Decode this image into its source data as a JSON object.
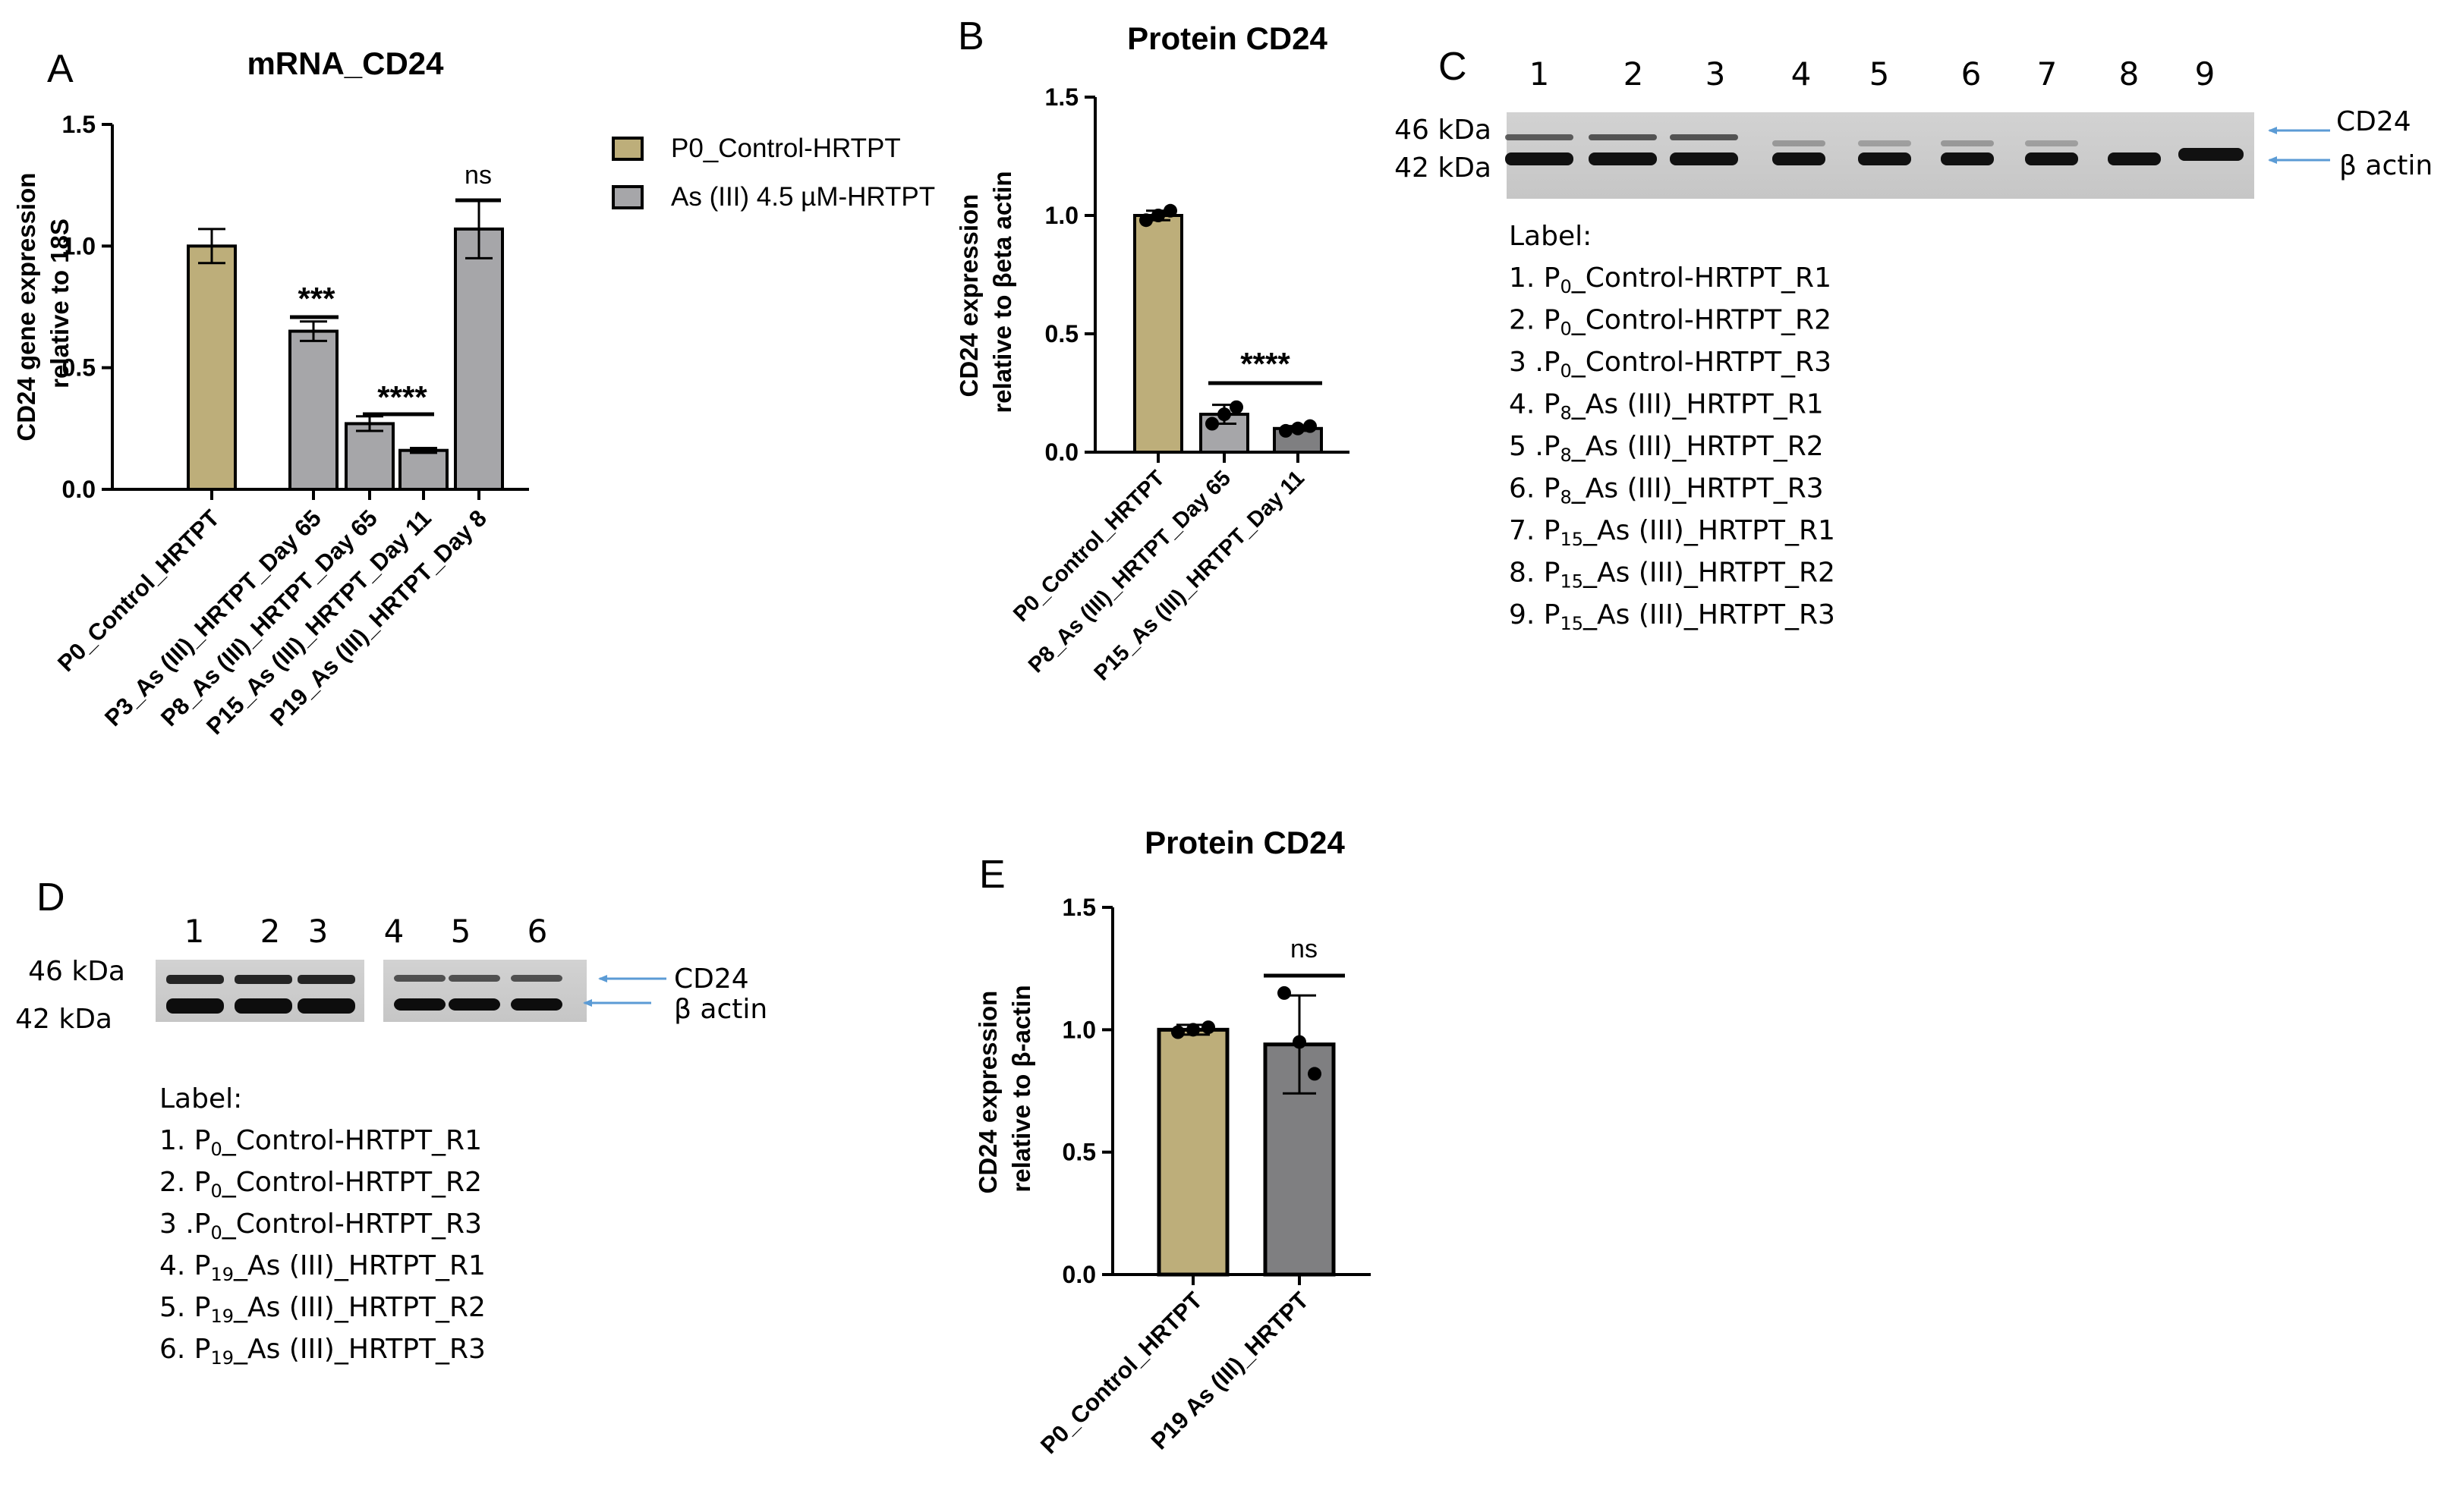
{
  "colors": {
    "control": "#bdae7a",
    "treated": "#a6a6a9",
    "treated_dark": "#7f7f81",
    "arrow": "#5b9bd5",
    "ink": "#000000"
  },
  "legend": {
    "items": [
      "P0_Control-HRTPT",
      "As (III) 4.5 µM-HRTPT"
    ]
  },
  "chart_data": [
    {
      "panel": "A",
      "type": "bar",
      "title": "mRNA_CD24",
      "ylabel": "CD24 gene expression relative to 18S",
      "ylim": [
        0,
        1.5
      ],
      "yticks": [
        "0.0",
        "0.5",
        "1.0",
        "1.5"
      ],
      "categories": [
        "P0_Control_HRTPT",
        "P3_As (III)_HRTPT_Day 65",
        "P8_As (III)_HRTPT_Day 65",
        "P15_As (III)_HRTPT_Day 11",
        "P19_As (III)_HRTPT_Day 8"
      ],
      "values": [
        1.0,
        0.65,
        0.27,
        0.16,
        1.07
      ],
      "errors": [
        0.07,
        0.04,
        0.03,
        0.01,
        0.12
      ],
      "annotations": [
        "***",
        "****",
        "ns"
      ]
    },
    {
      "panel": "B",
      "type": "bar",
      "title": "Protein CD24",
      "ylabel": "CD24 expression relative to βeta actin",
      "ylim": [
        0,
        1.5
      ],
      "yticks": [
        "0.0",
        "0.5",
        "1.0",
        "1.5"
      ],
      "categories": [
        "P0_Control_HRTPT",
        "P8_As (III)_HRTPT_Day 65",
        "P15_As (III)_HRTPT_Day 11"
      ],
      "values": [
        1.0,
        0.16,
        0.1
      ],
      "errors": [
        0.02,
        0.04,
        0.01
      ],
      "points": [
        [
          0.98,
          1.0,
          1.02
        ],
        [
          0.12,
          0.16,
          0.19
        ],
        [
          0.09,
          0.1,
          0.11
        ]
      ],
      "annotations": [
        "****"
      ]
    },
    {
      "panel": "E",
      "type": "bar",
      "title": "Protein CD24",
      "ylabel": "CD24 expression relative to β-actin",
      "ylim": [
        0,
        1.5
      ],
      "yticks": [
        "0.0",
        "0.5",
        "1.0",
        "1.5"
      ],
      "categories": [
        "P0_Control_HRTPT",
        "P19 As (III)_HRTPT"
      ],
      "values": [
        1.0,
        0.94
      ],
      "errors": [
        0.02,
        0.2
      ],
      "points": [
        [
          0.99,
          1.0,
          1.01
        ],
        [
          1.15,
          0.95,
          0.82
        ]
      ],
      "annotations": [
        "ns"
      ]
    }
  ],
  "panel_c": {
    "letter": "C",
    "lanes": [
      "1",
      "2",
      "3",
      "4",
      "5",
      "6",
      "7",
      "8",
      "9"
    ],
    "kda_top": "46 kDa",
    "kda_bottom": "42 kDa",
    "band_top": "CD24",
    "band_bottom": "β actin",
    "label_title": "Label:",
    "labels": [
      {
        "pre": "1. P",
        "sub": "0",
        "post": "_Control-HRTPT_R1"
      },
      {
        "pre": "2. P",
        "sub": "0",
        "post": "_Control-HRTPT_R2"
      },
      {
        "pre": "3 .P",
        "sub": "0",
        "post": "_Control-HRTPT_R3"
      },
      {
        "pre": "4. P",
        "sub": "8",
        "post": "_As (III)_HRTPT_R1"
      },
      {
        "pre": "5 .P",
        "sub": "8",
        "post": "_As (III)_HRTPT_R2"
      },
      {
        "pre": "6. P",
        "sub": "8",
        "post": "_As (III)_HRTPT_R3"
      },
      {
        "pre": "7. P",
        "sub": "15",
        "post": "_As (III)_HRTPT_R1"
      },
      {
        "pre": "8. P",
        "sub": "15",
        "post": "_As (III)_HRTPT_R2"
      },
      {
        "pre": "9. P",
        "sub": "15",
        "post": "_As (III)_HRTPT_R3"
      }
    ]
  },
  "panel_d": {
    "letter": "D",
    "lanes": [
      "1",
      "2",
      "3",
      "4",
      "5",
      "6"
    ],
    "kda_top": "46 kDa",
    "kda_bottom": "42 kDa",
    "band_top": "CD24",
    "band_bottom": "β actin",
    "label_title": "Label:",
    "labels": [
      {
        "pre": "1. P",
        "sub": "0",
        "post": "_Control-HRTPT_R1"
      },
      {
        "pre": "2. P",
        "sub": "0",
        "post": "_Control-HRTPT_R2"
      },
      {
        "pre": "3 .P",
        "sub": "0",
        "post": "_Control-HRTPT_R3"
      },
      {
        "pre": "4. P",
        "sub": "19",
        "post": "_As (III)_HRTPT_R1"
      },
      {
        "pre": "5. P",
        "sub": "19",
        "post": "_As (III)_HRTPT_R2"
      },
      {
        "pre": "6. P",
        "sub": "19",
        "post": "_As (III)_HRTPT_R3"
      }
    ]
  }
}
